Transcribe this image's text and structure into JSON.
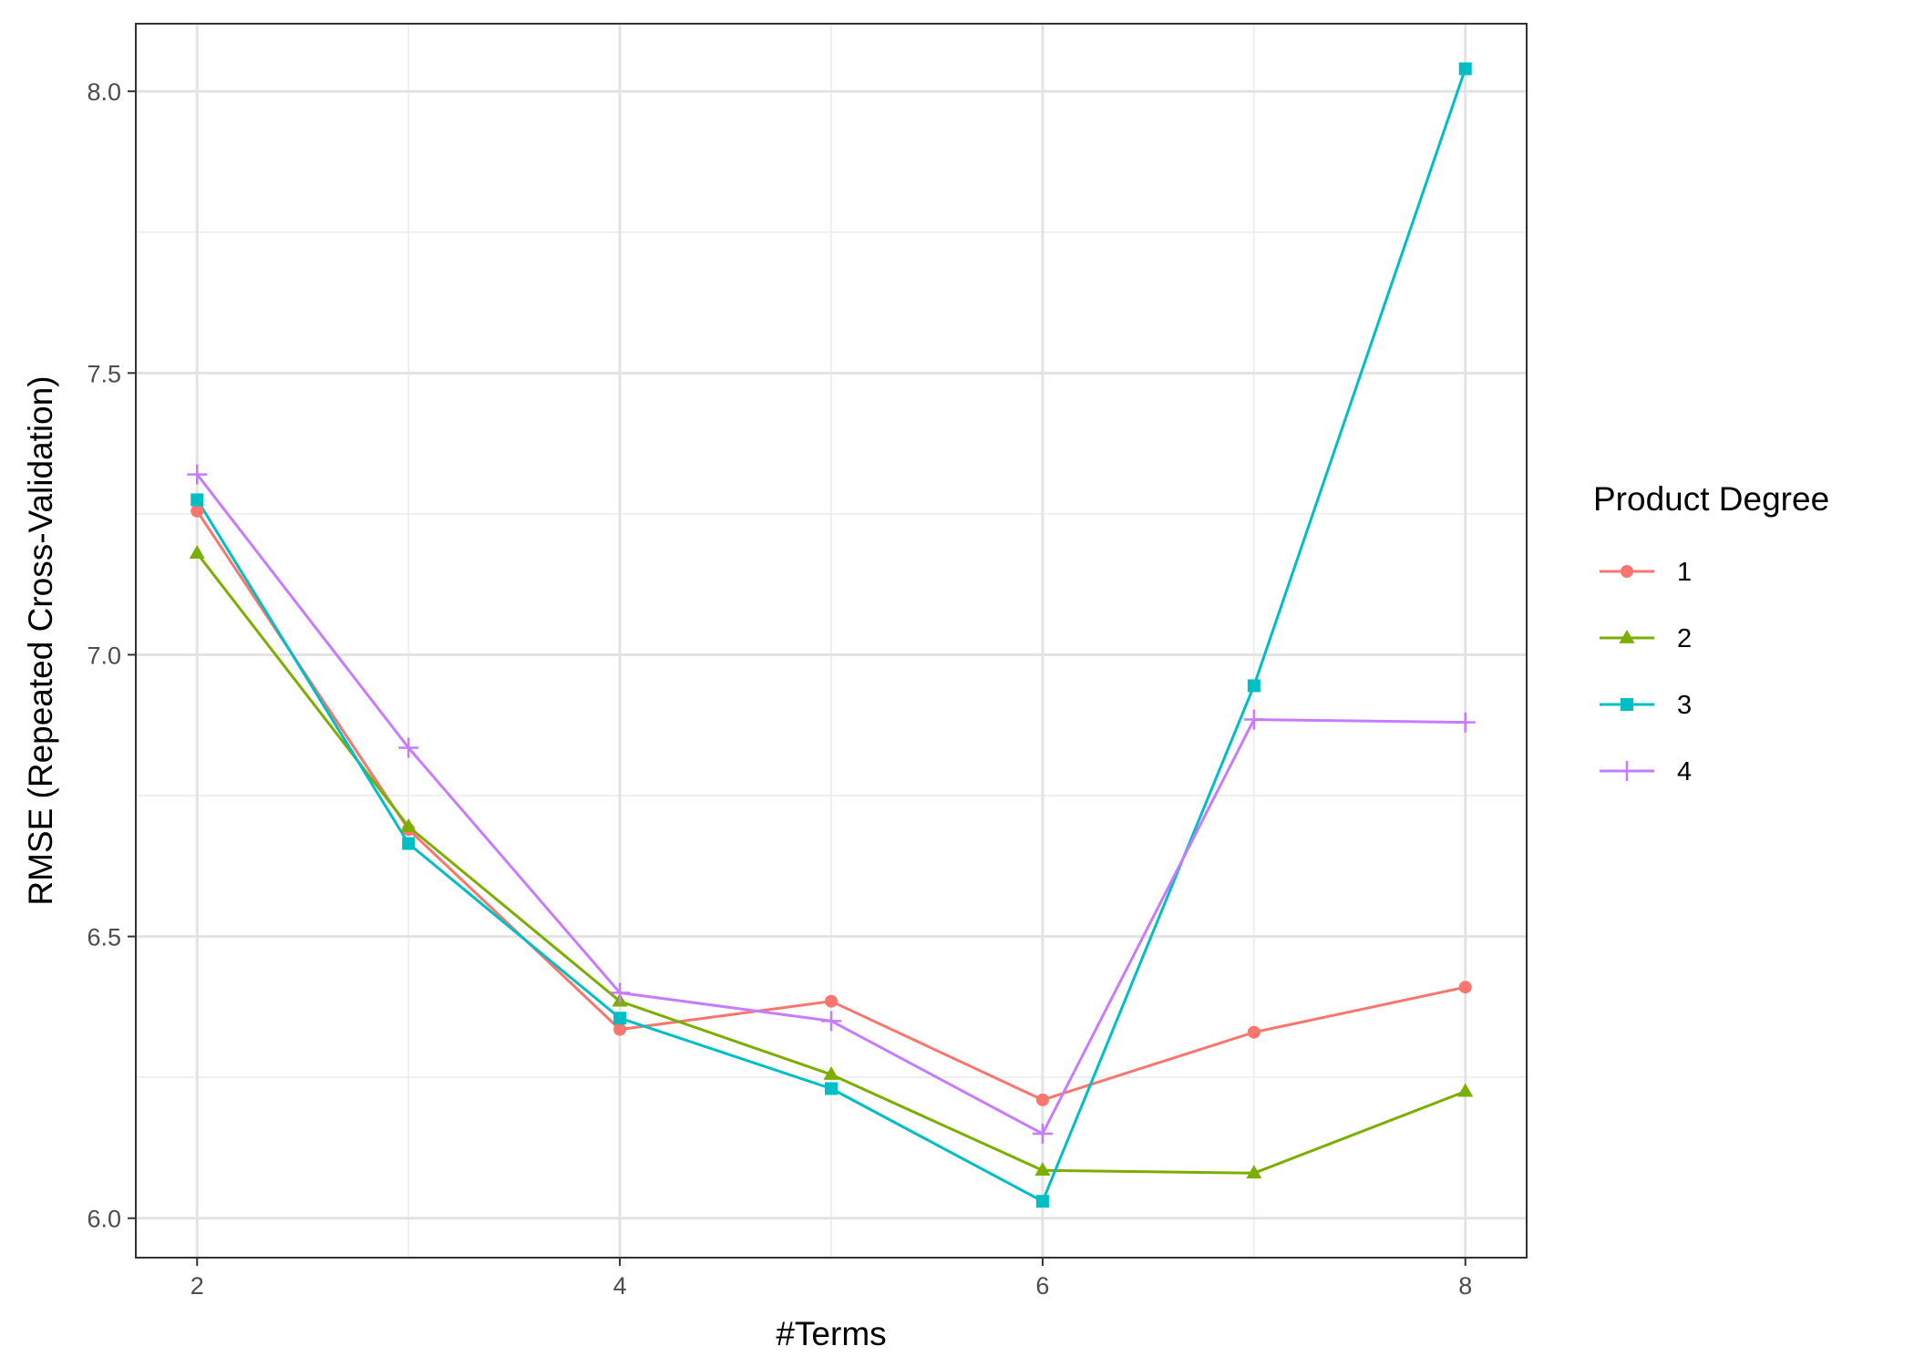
{
  "chart_data": {
    "type": "line",
    "title": "",
    "xlabel": "#Terms",
    "ylabel": "RMSE (Repeated Cross-Validation)",
    "xlim": [
      1.71,
      8.29
    ],
    "ylim": [
      5.93,
      8.12
    ],
    "x_ticks": [
      2,
      4,
      6,
      8
    ],
    "y_ticks": [
      6.0,
      6.5,
      7.0,
      7.5,
      8.0
    ],
    "x_tick_labels": [
      "2",
      "4",
      "6",
      "8"
    ],
    "y_tick_labels": [
      "6.0",
      "6.5",
      "7.0",
      "7.5",
      "8.0"
    ],
    "grid": true,
    "legend": {
      "title": "Product Degree",
      "position": "right"
    },
    "x": [
      2,
      3,
      4,
      5,
      6,
      7,
      8
    ],
    "series": [
      {
        "name": "1",
        "color": "#f8766d",
        "marker": "circle",
        "values": [
          7.255,
          6.69,
          6.335,
          6.385,
          6.21,
          6.33,
          6.41
        ]
      },
      {
        "name": "2",
        "color": "#7cae00",
        "marker": "triangle",
        "values": [
          7.18,
          6.695,
          6.385,
          6.255,
          6.085,
          6.08,
          6.225
        ]
      },
      {
        "name": "3",
        "color": "#00bfc4",
        "marker": "square",
        "values": [
          7.275,
          6.665,
          6.355,
          6.23,
          6.03,
          6.945,
          8.04
        ]
      },
      {
        "name": "4",
        "color": "#c77cff",
        "marker": "plus",
        "values": [
          7.32,
          6.835,
          6.4,
          6.35,
          6.15,
          6.885,
          6.88
        ]
      }
    ]
  }
}
